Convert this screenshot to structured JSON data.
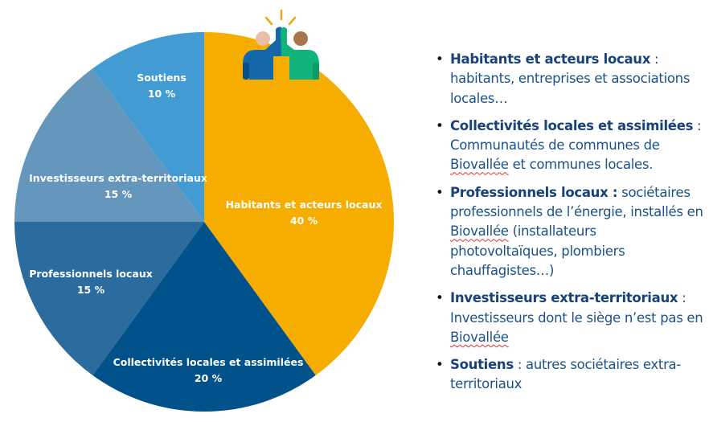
{
  "chart_data": {
    "type": "pie",
    "start": "12 o'clock, clockwise",
    "unit": "%",
    "slices": [
      {
        "label": "Habitants et acteurs locaux",
        "value": 40,
        "value_label": "40 %",
        "color": "#F7AC00"
      },
      {
        "label": "Collectivités locales et assimilées",
        "value": 20,
        "value_label": "20 %",
        "color": "#01528B"
      },
      {
        "label": "Professionnels locaux",
        "value": 15,
        "value_label": "15 %",
        "color": "#2B6B9E"
      },
      {
        "label": "Investisseurs extra-territoriaux",
        "value": 15,
        "value_label": "15 %",
        "color": "#6596BC"
      },
      {
        "label": "Soutiens",
        "value": 10,
        "value_label": "10 %",
        "color": "#429CD3"
      }
    ]
  },
  "icon": "high-five-people-icon",
  "legend": [
    {
      "term": "Habitants et acteurs locaux",
      "sep": " :",
      "desc": " habitants, entreprises et associations locales…"
    },
    {
      "term": "Collectivités locales et assimilées",
      "sep": " :",
      "desc_parts": [
        " Communautés de communes de ",
        "Biovallée",
        " et communes locales."
      ]
    },
    {
      "term": "Professionnels locaux :",
      "sep": "",
      "desc_parts": [
        " sociétaires professionnels de l’énergie, installés en ",
        "Biovallée",
        " (installateurs photovoltaïques, plombiers chauffagistes…)"
      ]
    },
    {
      "term": "Investisseurs extra-territoriaux",
      "sep": " :",
      "desc_parts": [
        " Investisseurs dont le siège n’est pas en ",
        "Biovallée",
        ""
      ]
    },
    {
      "term": "Soutiens",
      "sep": " :",
      "desc": " autres sociétaires extra-territoriaux"
    }
  ]
}
